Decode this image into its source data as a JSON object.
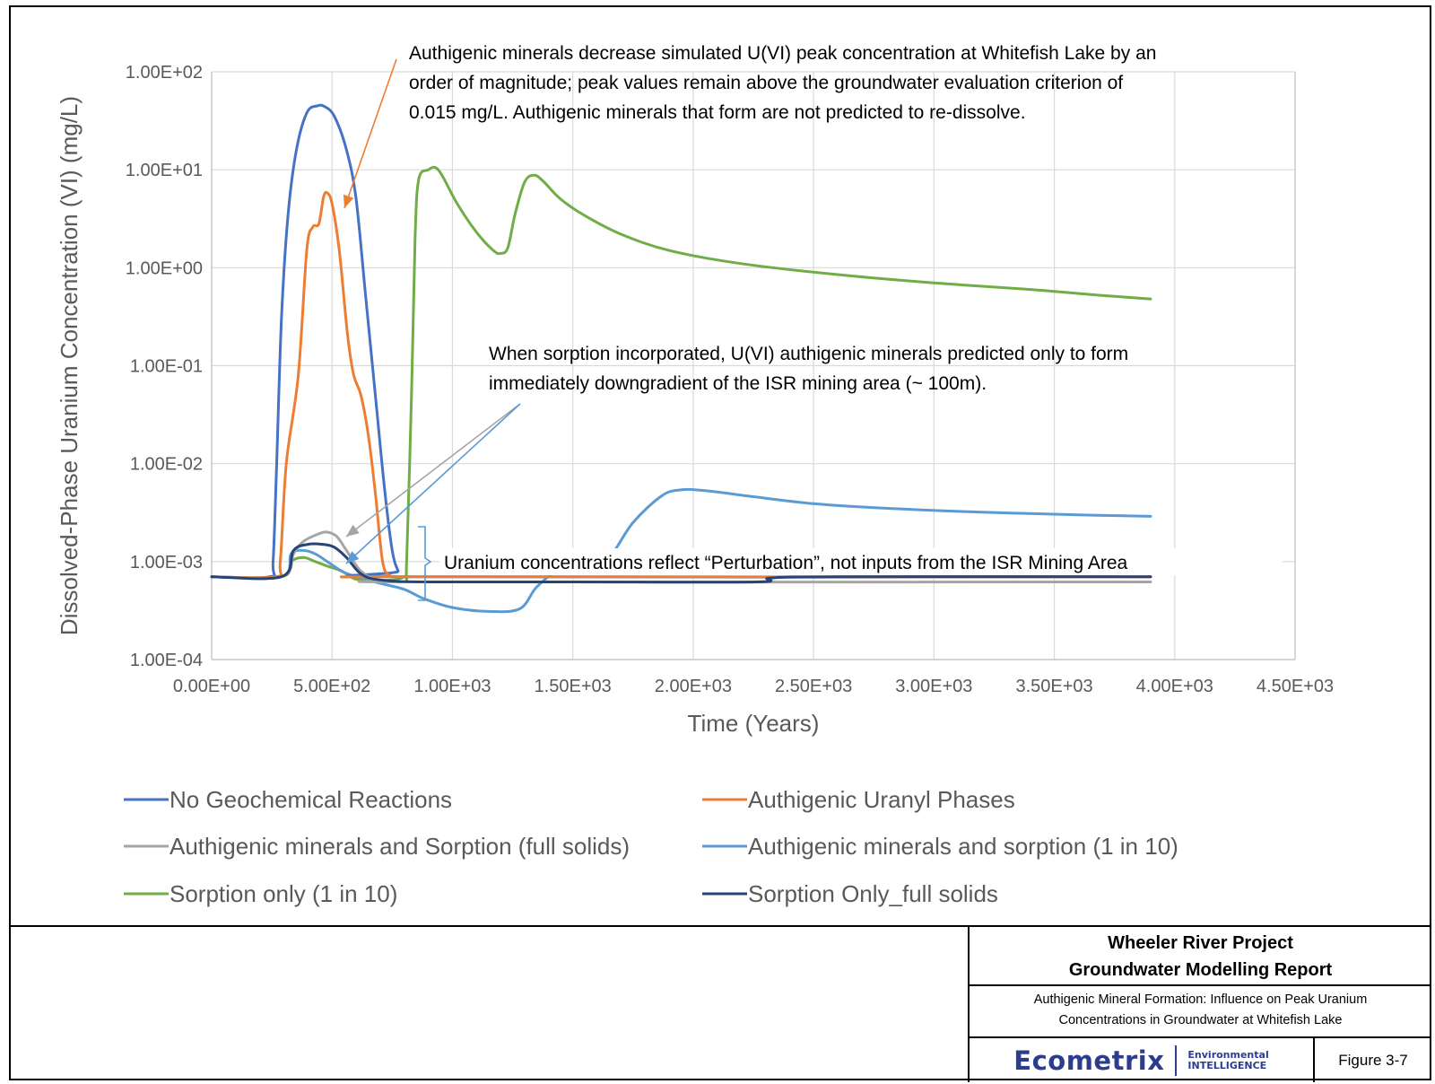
{
  "chart_data": {
    "type": "line",
    "title": "",
    "xlabel": "Time (Years)",
    "ylabel": "Dissolved-Phase Uranium Concentration (VI) (mg/L)",
    "xscale": "linear",
    "yscale": "log",
    "xlim": [
      0,
      4500
    ],
    "ylim": [
      0.0001,
      100
    ],
    "grid": true,
    "legend_position": "bottom",
    "x_ticks": [
      0,
      500,
      1000,
      1500,
      2000,
      2500,
      3000,
      3500,
      4000,
      4500
    ],
    "x_tick_labels": [
      "0.00E+00",
      "5.00E+02",
      "1.00E+03",
      "1.50E+03",
      "2.00E+03",
      "2.50E+03",
      "3.00E+03",
      "3.50E+03",
      "4.00E+03",
      "4.50E+03"
    ],
    "y_ticks": [
      0.0001,
      0.001,
      0.01,
      0.1,
      1,
      10,
      100
    ],
    "y_tick_labels": [
      "1.00E-04",
      "1.00E-03",
      "1.00E-02",
      "1.00E-01",
      "1.00E+00",
      "1.00E+01",
      "1.00E+02"
    ],
    "series": [
      {
        "name": "No Geochemical Reactions",
        "color": "#4472c4",
        "points": [
          [
            0,
            0.0007
          ],
          [
            240,
            0.0007
          ],
          [
            255,
            0.001
          ],
          [
            270,
            0.01
          ],
          [
            290,
            0.3
          ],
          [
            315,
            3
          ],
          [
            350,
            15
          ],
          [
            395,
            38
          ],
          [
            440,
            45
          ],
          [
            470,
            44
          ],
          [
            510,
            35
          ],
          [
            560,
            16
          ],
          [
            600,
            5
          ],
          [
            640,
            0.5
          ],
          [
            680,
            0.05
          ],
          [
            720,
            0.005
          ],
          [
            750,
            0.0013
          ],
          [
            775,
            0.0008
          ],
          [
            800,
            0.0007
          ],
          [
            3900,
            0.0007
          ]
        ]
      },
      {
        "name": "Authigenic Uranyl Phases",
        "color": "#ed7d31",
        "points": [
          [
            0,
            0.0007
          ],
          [
            265,
            0.0007
          ],
          [
            285,
            0.001
          ],
          [
            310,
            0.01
          ],
          [
            360,
            0.08
          ],
          [
            395,
            1.5
          ],
          [
            420,
            2.6
          ],
          [
            445,
            2.8
          ],
          [
            465,
            5.3
          ],
          [
            480,
            5.8
          ],
          [
            500,
            4.5
          ],
          [
            530,
            1.5
          ],
          [
            565,
            0.2
          ],
          [
            590,
            0.08
          ],
          [
            620,
            0.05
          ],
          [
            650,
            0.02
          ],
          [
            680,
            0.005
          ],
          [
            710,
            0.001
          ],
          [
            740,
            0.00072
          ],
          [
            780,
            0.0007
          ],
          [
            3900,
            0.0007
          ]
        ]
      },
      {
        "name": "Authigenic minerals and Sorption (full solids)",
        "color": "#a5a5a5",
        "points": [
          [
            0,
            0.0007
          ],
          [
            290,
            0.0007
          ],
          [
            340,
            0.0012
          ],
          [
            380,
            0.0016
          ],
          [
            440,
            0.0019
          ],
          [
            480,
            0.002
          ],
          [
            520,
            0.0018
          ],
          [
            560,
            0.0013
          ],
          [
            620,
            0.0008
          ],
          [
            700,
            0.00065
          ],
          [
            900,
            0.00062
          ],
          [
            3900,
            0.00062
          ]
        ]
      },
      {
        "name": "Authigenic minerals and sorption (1 in 10)",
        "color": "#5b9bd5",
        "points": [
          [
            0,
            0.0007
          ],
          [
            290,
            0.0007
          ],
          [
            330,
            0.0012
          ],
          [
            380,
            0.0013
          ],
          [
            430,
            0.0012
          ],
          [
            480,
            0.001
          ],
          [
            540,
            0.0008
          ],
          [
            600,
            0.0007
          ],
          [
            700,
            0.0006
          ],
          [
            800,
            0.00052
          ],
          [
            880,
            0.00042
          ],
          [
            1000,
            0.00034
          ],
          [
            1150,
            0.00031
          ],
          [
            1280,
            0.00033
          ],
          [
            1350,
            0.00055
          ],
          [
            1450,
            0.00085
          ],
          [
            1560,
            0.00095
          ],
          [
            1650,
            0.0011
          ],
          [
            1750,
            0.0025
          ],
          [
            1870,
            0.0047
          ],
          [
            1950,
            0.0054
          ],
          [
            2050,
            0.0053
          ],
          [
            2250,
            0.0046
          ],
          [
            2500,
            0.0039
          ],
          [
            2800,
            0.0035
          ],
          [
            3200,
            0.0032
          ],
          [
            3600,
            0.003
          ],
          [
            3900,
            0.0029
          ]
        ]
      },
      {
        "name": "Sorption only (1 in 10)",
        "color": "#70ad47",
        "points": [
          [
            0,
            0.0007
          ],
          [
            290,
            0.0007
          ],
          [
            330,
            0.001
          ],
          [
            380,
            0.0011
          ],
          [
            430,
            0.001
          ],
          [
            480,
            0.0009
          ],
          [
            540,
            0.0008
          ],
          [
            600,
            0.00066
          ],
          [
            700,
            0.00064
          ],
          [
            800,
            0.0007
          ],
          [
            810,
            0.001
          ],
          [
            830,
            0.05
          ],
          [
            845,
            2
          ],
          [
            860,
            8
          ],
          [
            900,
            10
          ],
          [
            930,
            10.5
          ],
          [
            960,
            8.5
          ],
          [
            1020,
            4.5
          ],
          [
            1100,
            2.3
          ],
          [
            1170,
            1.5
          ],
          [
            1200,
            1.4
          ],
          [
            1230,
            1.6
          ],
          [
            1260,
            3.5
          ],
          [
            1300,
            7.5
          ],
          [
            1340,
            8.8
          ],
          [
            1380,
            7.5
          ],
          [
            1450,
            5
          ],
          [
            1550,
            3.4
          ],
          [
            1700,
            2.2
          ],
          [
            1900,
            1.5
          ],
          [
            2200,
            1.1
          ],
          [
            2600,
            0.85
          ],
          [
            3000,
            0.7
          ],
          [
            3400,
            0.6
          ],
          [
            3700,
            0.52
          ],
          [
            3900,
            0.48
          ]
        ]
      },
      {
        "name": "Sorption Only_full solids",
        "color": "#264478",
        "points": [
          [
            0,
            0.0007
          ],
          [
            290,
            0.0007
          ],
          [
            340,
            0.0013
          ],
          [
            400,
            0.0015
          ],
          [
            460,
            0.0015
          ],
          [
            510,
            0.0014
          ],
          [
            560,
            0.0011
          ],
          [
            620,
            0.00075
          ],
          [
            700,
            0.00065
          ],
          [
            900,
            0.00062
          ],
          [
            1500,
            0.00062
          ],
          [
            2260,
            0.00062
          ],
          [
            2320,
            0.00068
          ],
          [
            2600,
            0.0007
          ],
          [
            3900,
            0.0007
          ]
        ]
      }
    ],
    "annotations": [
      {
        "id": "authigenic",
        "text": [
          "Authigenic minerals decrease simulated U(VI) peak concentration at Whitefish Lake by an",
          "order of magnitude; peak values remain above the groundwater evaluation criterion of",
          "0.015 mg/L.  Authigenic minerals that form are not predicted to re-dissolve."
        ]
      },
      {
        "id": "sorption",
        "text": [
          "When sorption  incorporated, U(VI) authigenic minerals predicted only to form",
          "immediately downgradient of the ISR mining area (~ 100m)."
        ]
      },
      {
        "id": "perturbation",
        "text": [
          "Uranium concentrations reflect “Perturbation”, not inputs from the ISR Mining Area"
        ]
      }
    ]
  },
  "title_block": {
    "project": "Wheeler River Project",
    "report": "Groundwater Modelling Report",
    "description_line1": "Authigenic Mineral Formation: Influence on Peak Uranium",
    "description_line2": "Concentrations in Groundwater at Whitefish Lake",
    "logo_name": "Ecometrix",
    "logo_tag_line1": "Environmental",
    "logo_tag_line2": "INTELLIGENCE",
    "figure_label": "Figure 3-7"
  }
}
